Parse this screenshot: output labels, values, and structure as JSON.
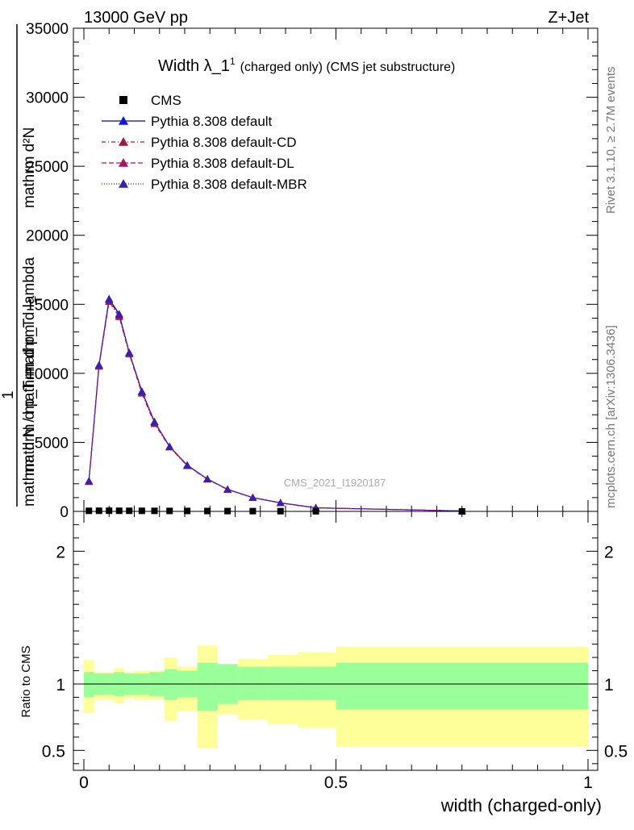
{
  "header": {
    "left": "13000 GeV pp",
    "right": "Z+Jet"
  },
  "side": {
    "rivet": "Rivet 3.1.10, ≥ 2.7M events",
    "mcplots": "mcplots.cern.ch [arXiv:1306.3436]"
  },
  "watermark": "CMS_2021_I1920187",
  "chart_data": [
    {
      "type": "line",
      "title": "Width λ_1",
      "title_sup": "1",
      "title_suffix": "(charged only) (CMS jet substructure)",
      "ylabel_top": "mathrm d²N",
      "ylabel_main": "mathrm d p_T mathrm d lambda",
      "ylabel_sub": "T",
      "ylabel_one": "1",
      "ylabel_bottom": "mathrm d N / mathrm d p_T",
      "xlim": [
        0,
        1
      ],
      "ylim": [
        0,
        35000
      ],
      "yticks": [
        0,
        5000,
        10000,
        15000,
        20000,
        25000,
        30000,
        35000
      ],
      "x": [
        0.01,
        0.03,
        0.05,
        0.07,
        0.09,
        0.115,
        0.14,
        0.17,
        0.205,
        0.245,
        0.285,
        0.335,
        0.39,
        0.46,
        0.75
      ],
      "data": {
        "name": "CMS",
        "values": [
          40,
          45,
          48,
          45,
          42,
          40,
          38,
          35,
          32,
          28,
          24,
          20,
          16,
          10,
          2
        ]
      },
      "series": [
        {
          "name": "Pythia 8.308 default",
          "color": "#0000cc",
          "dash": "",
          "marker_color": "#1414d8",
          "values": [
            2200,
            10600,
            15400,
            14300,
            11500,
            8700,
            6500,
            4700,
            3350,
            2350,
            1600,
            1000,
            620,
            260,
            30
          ]
        },
        {
          "name": "Pythia 8.308 default-CD",
          "color": "#aa2233",
          "dash": "5,3,1,3",
          "marker_color": "#9a1a40",
          "values": [
            2150,
            10500,
            15200,
            14100,
            11400,
            8550,
            6350,
            4650,
            3300,
            2320,
            1580,
            990,
            610,
            255,
            30
          ]
        },
        {
          "name": "Pythia 8.308 default-DL",
          "color": "#b0105a",
          "dash": "6,3",
          "marker_color": "#a8135e",
          "values": [
            2180,
            10550,
            15300,
            14200,
            11450,
            8650,
            6450,
            4680,
            3320,
            2340,
            1590,
            995,
            615,
            258,
            30
          ]
        },
        {
          "name": "Pythia 8.308 default-MBR",
          "color": "#2222dd",
          "dash": "1,2",
          "marker_color": "#3a1fb0",
          "values": [
            2200,
            10600,
            15350,
            14250,
            11480,
            8680,
            6480,
            4690,
            3340,
            2345,
            1595,
            998,
            618,
            259,
            30
          ]
        }
      ]
    },
    {
      "type": "area",
      "ylabel": "Ratio to CMS",
      "xlabel": "width (charged-only)",
      "xlim": [
        0,
        1
      ],
      "ylim": [
        0.35,
        2.3
      ],
      "yticks_labeled": [
        0.5,
        1,
        2
      ],
      "xticks_labeled": [
        0,
        0.5,
        1
      ],
      "xtick_labels": [
        "0",
        "0.5",
        "1"
      ],
      "ytick_labels": [
        "0.5",
        "1",
        "2"
      ],
      "bins": [
        0.0,
        0.02,
        0.04,
        0.06,
        0.08,
        0.1,
        0.13,
        0.16,
        0.185,
        0.225,
        0.265,
        0.305,
        0.365,
        0.425,
        0.5,
        1.0
      ],
      "stat_lo": [
        0.9,
        0.92,
        0.92,
        0.91,
        0.92,
        0.92,
        0.91,
        0.88,
        0.9,
        0.8,
        0.85,
        0.88,
        0.88,
        0.88,
        0.81
      ],
      "stat_hi": [
        1.09,
        1.08,
        1.08,
        1.09,
        1.08,
        1.08,
        1.09,
        1.11,
        1.1,
        1.16,
        1.15,
        1.13,
        1.13,
        1.13,
        1.16
      ],
      "tot_lo": [
        0.78,
        0.88,
        0.88,
        0.86,
        0.89,
        0.88,
        0.88,
        0.72,
        0.8,
        0.52,
        0.77,
        0.73,
        0.7,
        0.67,
        0.53
      ],
      "tot_hi": [
        1.18,
        1.09,
        1.09,
        1.12,
        1.09,
        1.1,
        1.1,
        1.2,
        1.13,
        1.29,
        1.14,
        1.19,
        1.22,
        1.24,
        1.28
      ]
    }
  ],
  "colors": {
    "stat_band": "#99ff99",
    "syst_band": "#ffff99",
    "frame": "#000000"
  }
}
